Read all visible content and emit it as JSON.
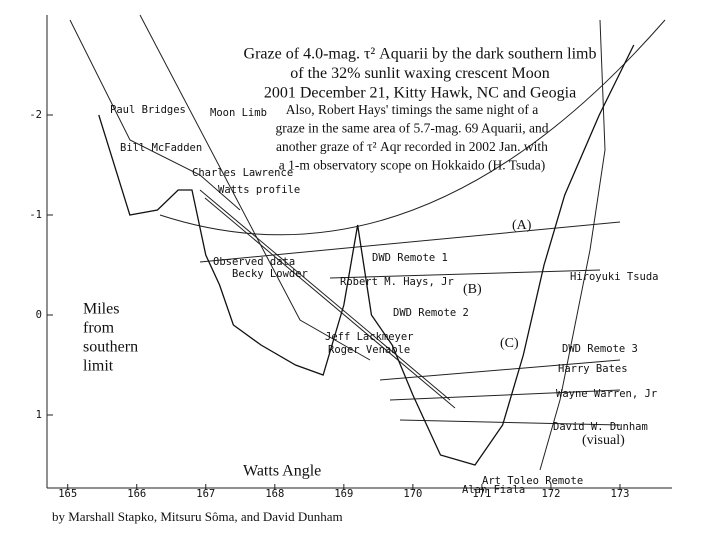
{
  "chart_data": {
    "type": "line",
    "title": [
      "Graze of 4.0-mag. τ² Aquarii by the dark southern limb",
      "of the 32% sunlit waxing crescent Moon",
      "2001 December 21, Kitty Hawk, NC and Geogia"
    ],
    "note": [
      "Also, Robert Hays' timings the same night of a",
      "graze in the same area of 5.7-mag. 69 Aquarii, and",
      "another graze of τ² Aqr recorded in 2002 Jan. with",
      "a 1-m observatory scope on Hokkaido (H. Tsuda)"
    ],
    "xlabel": "Watts Angle",
    "ylabel": [
      "Miles",
      "from",
      "southern",
      "limit"
    ],
    "credit": "by Marshall Stapko, Mitsuru Sôma, and David Dunham",
    "annotations": [
      "Paul Bridges",
      "Moon Limb",
      "Bill McFadden",
      "Charles Lawrence",
      "Watts profile",
      "Observed data",
      "Becky Lowder",
      "DWD Remote 1",
      "Robert M. Hays, Jr",
      "(A)",
      "(B)",
      "DWD Remote 2",
      "Hiroyuki Tsuda",
      "(C)",
      "Jeff Lackmeyer",
      "Roger Venable",
      "DWD Remote 3",
      "Harry Bates",
      "Wayne Warren, Jr",
      "David W. Dunham",
      "(visual)",
      "Art Toleo Remote",
      "Alan Fiala"
    ],
    "xlim": [
      164.7,
      174.0
    ],
    "ylim": [
      -3.0,
      1.7
    ],
    "xticks": [
      165,
      166,
      167,
      168,
      169,
      170,
      171,
      172,
      173
    ],
    "yticks": [
      -2,
      -1,
      0,
      1
    ],
    "series": [
      {
        "color": "#111111",
        "x": [
          165.45,
          165.9,
          166.3,
          166.6,
          166.8,
          167.0,
          167.2,
          167.4,
          167.8,
          168.3,
          168.7,
          169.0,
          169.2,
          169.4,
          169.7,
          170.0,
          170.4,
          170.9,
          171.3,
          171.6,
          171.9,
          172.2,
          172.7,
          173.2
        ],
        "values": [
          -2.0,
          -1.0,
          -1.05,
          -1.25,
          -1.25,
          -0.6,
          -0.3,
          0.1,
          0.3,
          0.5,
          0.6,
          -0.1,
          -0.9,
          0.0,
          0.3,
          0.8,
          1.4,
          1.5,
          1.1,
          0.4,
          -0.5,
          -1.2,
          -2.0,
          -2.7
        ]
      }
    ]
  }
}
